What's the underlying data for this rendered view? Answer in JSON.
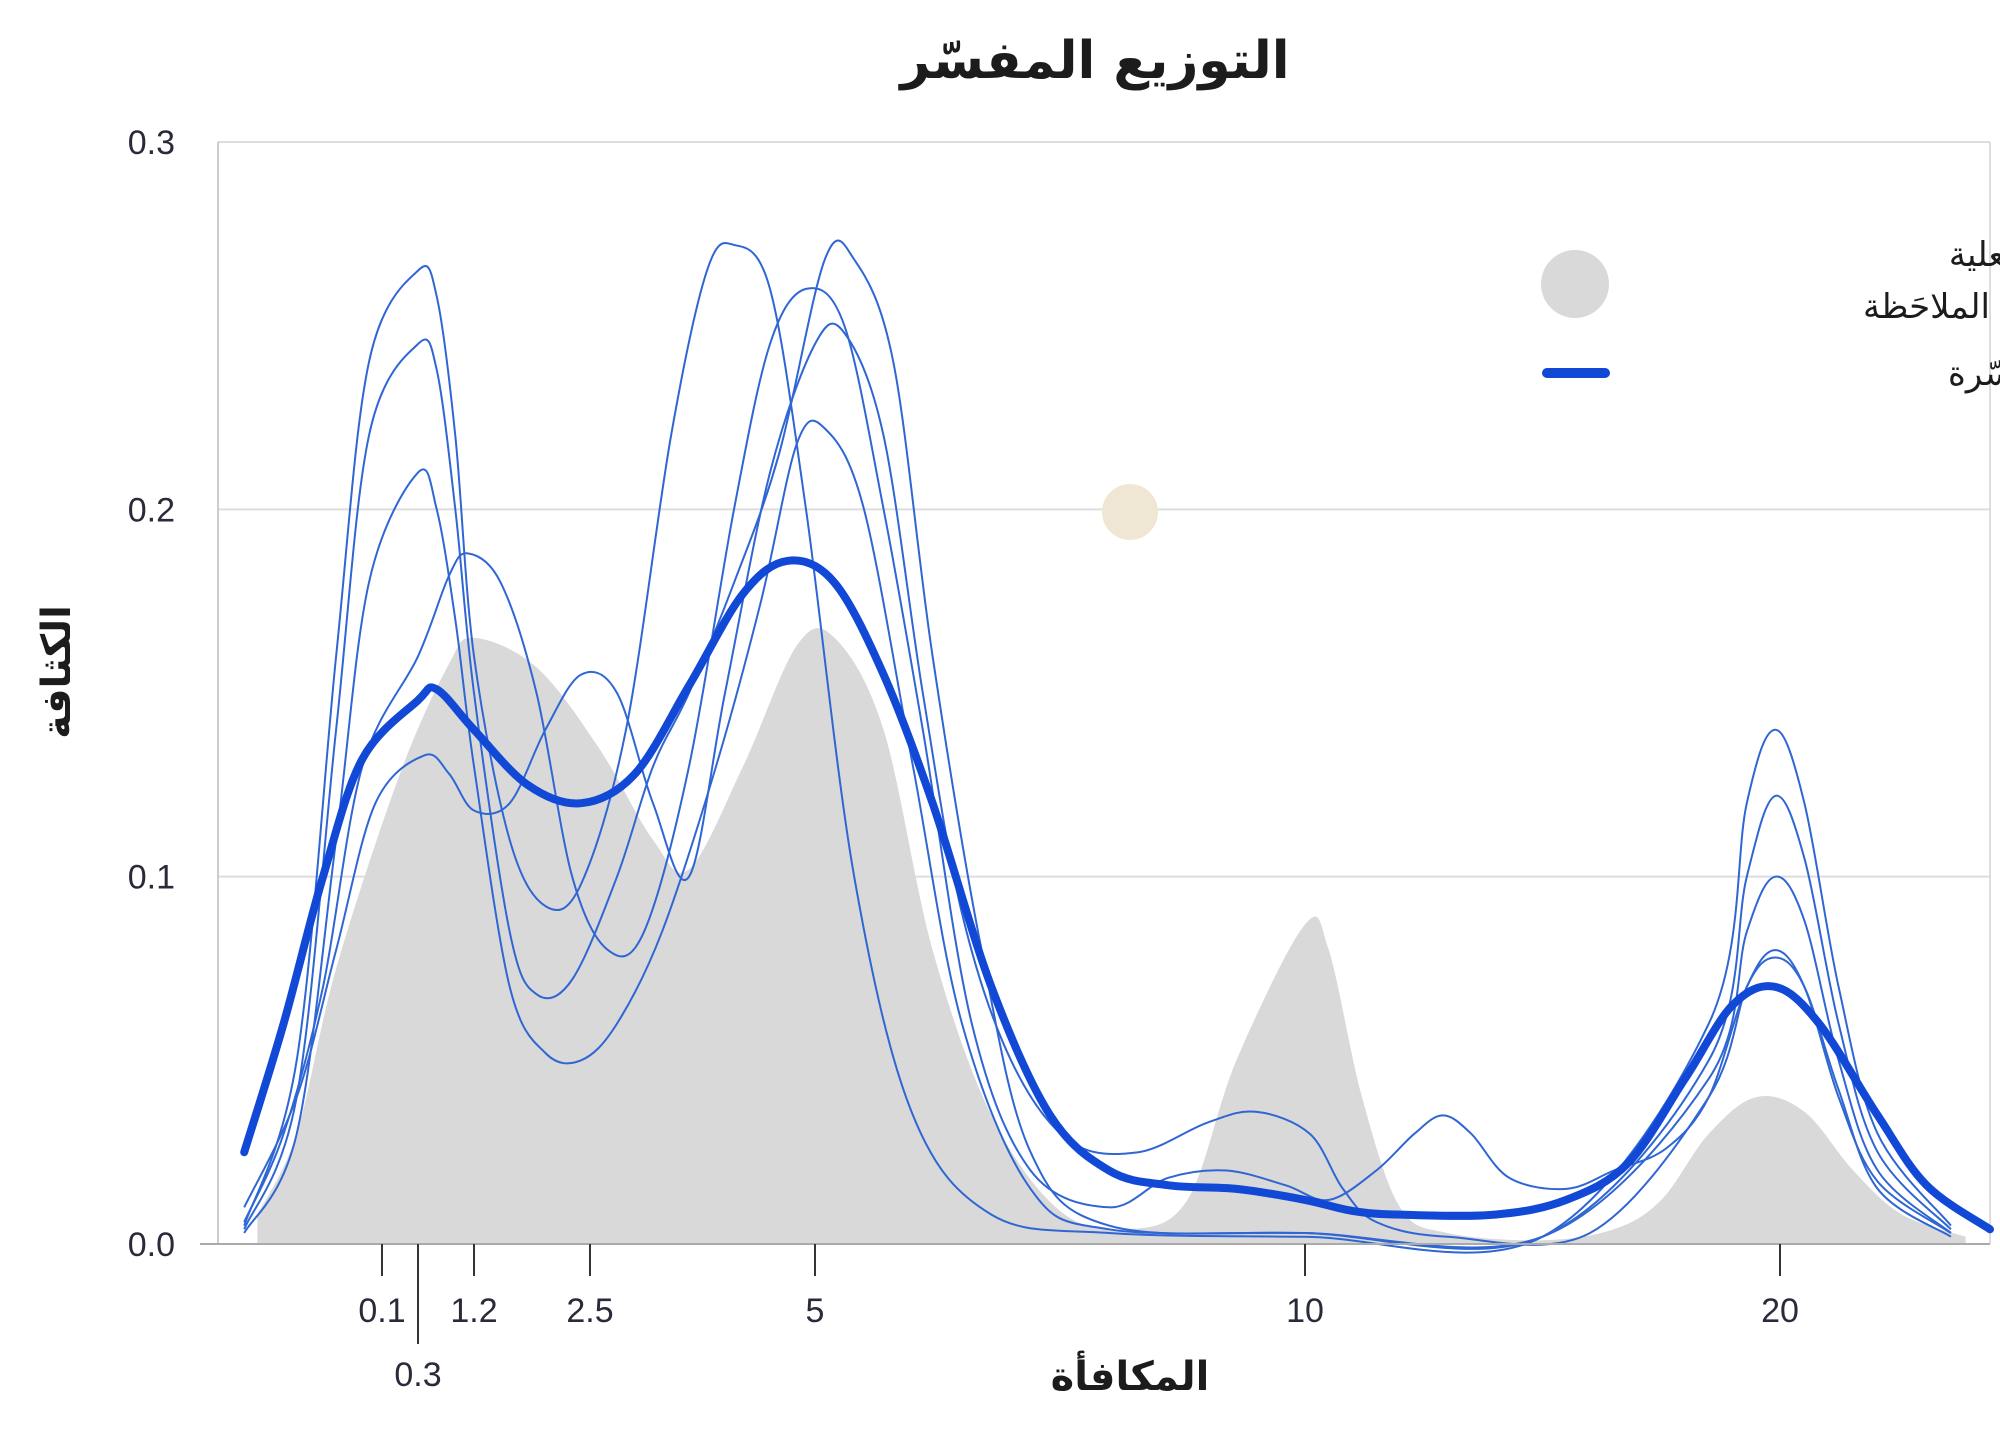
{
  "chart_data": {
    "type": "area",
    "title": "التوزيع المفسّر",
    "xlabel": "المكافأة",
    "ylabel": "الكثافة",
    "ylim": [
      0,
      0.3
    ],
    "y_ticks": [
      "0.0",
      "0.1",
      "0.2",
      "0.3"
    ],
    "x_ticks": [
      {
        "value": 0.1,
        "label": "0.1",
        "row": 1
      },
      {
        "value": 0.3,
        "label": "0.3",
        "row": 2
      },
      {
        "value": 1.2,
        "label": "1.2",
        "row": 1
      },
      {
        "value": 2.5,
        "label": "2.5",
        "row": 1
      },
      {
        "value": 5,
        "label": "5",
        "row": 1
      },
      {
        "value": 10,
        "label": "10",
        "row": 1
      },
      {
        "value": 20,
        "label": "20",
        "row": 1
      }
    ],
    "grid": true,
    "legend_position": "top-right",
    "colors": {
      "observed": "#d9d9d9",
      "fitted": "#1148d6",
      "samples": "#2f66d4",
      "grid": "#dddddd",
      "dot": "#efe6d4"
    },
    "series": [
      {
        "name": "المعلومات الفعلية الملاحَظة",
        "kind": "area",
        "points": [
          [
            -1.8,
            0.008
          ],
          [
            -1.2,
            0.03
          ],
          [
            -0.6,
            0.075
          ],
          [
            0.2,
            0.128
          ],
          [
            0.8,
            0.158
          ],
          [
            1.2,
            0.165
          ],
          [
            1.9,
            0.157
          ],
          [
            2.6,
            0.135
          ],
          [
            3.2,
            0.11
          ],
          [
            3.6,
            0.102
          ],
          [
            4.2,
            0.13
          ],
          [
            4.8,
            0.163
          ],
          [
            5.2,
            0.165
          ],
          [
            5.7,
            0.14
          ],
          [
            6.2,
            0.08
          ],
          [
            6.8,
            0.035
          ],
          [
            7.5,
            0.009
          ],
          [
            8.2,
            0.004
          ],
          [
            8.8,
            0.012
          ],
          [
            9.3,
            0.05
          ],
          [
            10,
            0.087
          ],
          [
            10.5,
            0.08
          ],
          [
            11.2,
            0.04
          ],
          [
            12,
            0.01
          ],
          [
            13,
            0.003
          ],
          [
            15,
            0.001
          ],
          [
            16.5,
            0.004
          ],
          [
            17.5,
            0.012
          ],
          [
            18.5,
            0.03
          ],
          [
            19.5,
            0.04
          ],
          [
            20.5,
            0.036
          ],
          [
            21.5,
            0.02
          ],
          [
            22.5,
            0.008
          ],
          [
            23.8,
            0.002
          ]
        ]
      },
      {
        "name": "المعلومات المفسّرة",
        "kind": "line",
        "points": [
          [
            -2,
            0.025
          ],
          [
            -1.4,
            0.06
          ],
          [
            -0.8,
            0.1
          ],
          [
            -0.2,
            0.132
          ],
          [
            0.3,
            0.148
          ],
          [
            0.6,
            0.151
          ],
          [
            1.2,
            0.14
          ],
          [
            1.8,
            0.125
          ],
          [
            2.4,
            0.12
          ],
          [
            3.0,
            0.128
          ],
          [
            3.6,
            0.152
          ],
          [
            4.2,
            0.177
          ],
          [
            4.7,
            0.186
          ],
          [
            5.2,
            0.18
          ],
          [
            5.7,
            0.155
          ],
          [
            6.2,
            0.12
          ],
          [
            6.8,
            0.07
          ],
          [
            7.4,
            0.035
          ],
          [
            8.0,
            0.02
          ],
          [
            8.6,
            0.016
          ],
          [
            9.3,
            0.015
          ],
          [
            10,
            0.012
          ],
          [
            11,
            0.009
          ],
          [
            12,
            0.008
          ],
          [
            14,
            0.008
          ],
          [
            15.5,
            0.012
          ],
          [
            16.8,
            0.022
          ],
          [
            18,
            0.045
          ],
          [
            19,
            0.065
          ],
          [
            19.9,
            0.07
          ],
          [
            20.8,
            0.06
          ],
          [
            22,
            0.035
          ],
          [
            23,
            0.016
          ],
          [
            24.3,
            0.004
          ]
        ]
      },
      {
        "kind": "sample",
        "points": [
          [
            -2,
            0.005
          ],
          [
            -1.2,
            0.05
          ],
          [
            -0.6,
            0.16
          ],
          [
            -0.1,
            0.24
          ],
          [
            0.3,
            0.265
          ],
          [
            0.6,
            0.258
          ],
          [
            0.9,
            0.22
          ],
          [
            1.2,
            0.16
          ],
          [
            1.6,
            0.11
          ],
          [
            2.0,
            0.092
          ],
          [
            2.4,
            0.098
          ],
          [
            2.9,
            0.14
          ],
          [
            3.4,
            0.22
          ],
          [
            3.8,
            0.265
          ],
          [
            4.1,
            0.272
          ],
          [
            4.5,
            0.26
          ],
          [
            4.9,
            0.2
          ],
          [
            5.4,
            0.1
          ],
          [
            6.0,
            0.035
          ],
          [
            6.8,
            0.008
          ],
          [
            8,
            0.003
          ],
          [
            10,
            0.002
          ],
          [
            15,
            0.002
          ],
          [
            18.5,
            0.06
          ],
          [
            19.3,
            0.12
          ],
          [
            19.9,
            0.14
          ],
          [
            20.5,
            0.12
          ],
          [
            21.2,
            0.07
          ],
          [
            22,
            0.03
          ],
          [
            23.5,
            0.005
          ]
        ]
      },
      {
        "kind": "sample",
        "points": [
          [
            -2,
            0.004
          ],
          [
            -1.2,
            0.04
          ],
          [
            -0.6,
            0.14
          ],
          [
            -0.1,
            0.22
          ],
          [
            0.3,
            0.245
          ],
          [
            0.6,
            0.238
          ],
          [
            0.9,
            0.2
          ],
          [
            1.2,
            0.15
          ],
          [
            1.6,
            0.085
          ],
          [
            1.9,
            0.068
          ],
          [
            2.3,
            0.072
          ],
          [
            2.8,
            0.1
          ],
          [
            3.2,
            0.13
          ],
          [
            3.6,
            0.15
          ],
          [
            4.1,
            0.18
          ],
          [
            4.6,
            0.215
          ],
          [
            5.1,
            0.268
          ],
          [
            5.4,
            0.268
          ],
          [
            5.8,
            0.24
          ],
          [
            6.2,
            0.16
          ],
          [
            6.7,
            0.08
          ],
          [
            7.2,
            0.025
          ],
          [
            8,
            0.005
          ],
          [
            10,
            0.003
          ],
          [
            15,
            0.002
          ],
          [
            18.5,
            0.05
          ],
          [
            19.3,
            0.1
          ],
          [
            19.9,
            0.122
          ],
          [
            20.5,
            0.105
          ],
          [
            21.2,
            0.06
          ],
          [
            22,
            0.025
          ],
          [
            23.5,
            0.004
          ]
        ]
      },
      {
        "kind": "sample",
        "points": [
          [
            -2,
            0.003
          ],
          [
            -1.2,
            0.03
          ],
          [
            -0.6,
            0.11
          ],
          [
            -0.1,
            0.18
          ],
          [
            0.3,
            0.21
          ],
          [
            0.6,
            0.2
          ],
          [
            0.9,
            0.17
          ],
          [
            1.2,
            0.13
          ],
          [
            1.6,
            0.07
          ],
          [
            2.0,
            0.052
          ],
          [
            2.4,
            0.05
          ],
          [
            2.8,
            0.06
          ],
          [
            3.3,
            0.085
          ],
          [
            3.9,
            0.13
          ],
          [
            4.4,
            0.175
          ],
          [
            4.8,
            0.218
          ],
          [
            5.1,
            0.222
          ],
          [
            5.5,
            0.2
          ],
          [
            6.0,
            0.13
          ],
          [
            6.5,
            0.06
          ],
          [
            7.2,
            0.015
          ],
          [
            8,
            0.004
          ],
          [
            10,
            0.003
          ],
          [
            15,
            0.002
          ],
          [
            18.5,
            0.045
          ],
          [
            19.3,
            0.085
          ],
          [
            19.9,
            0.1
          ],
          [
            20.5,
            0.088
          ],
          [
            21.2,
            0.05
          ],
          [
            22,
            0.02
          ],
          [
            23.5,
            0.003
          ]
        ]
      },
      {
        "kind": "sample",
        "points": [
          [
            -2,
            0.01
          ],
          [
            -1.2,
            0.04
          ],
          [
            -0.6,
            0.08
          ],
          [
            0,
            0.12
          ],
          [
            0.4,
            0.133
          ],
          [
            0.8,
            0.128
          ],
          [
            1.2,
            0.118
          ],
          [
            1.6,
            0.12
          ],
          [
            2.0,
            0.14
          ],
          [
            2.4,
            0.155
          ],
          [
            2.8,
            0.15
          ],
          [
            3.2,
            0.12
          ],
          [
            3.6,
            0.1
          ],
          [
            4.0,
            0.15
          ],
          [
            4.5,
            0.21
          ],
          [
            5.0,
            0.245
          ],
          [
            5.3,
            0.248
          ],
          [
            5.7,
            0.22
          ],
          [
            6.1,
            0.15
          ],
          [
            6.5,
            0.09
          ],
          [
            7.0,
            0.05
          ],
          [
            7.6,
            0.028
          ],
          [
            8.3,
            0.025
          ],
          [
            9.0,
            0.033
          ],
          [
            9.5,
            0.036
          ],
          [
            10.1,
            0.03
          ],
          [
            10.8,
            0.015
          ],
          [
            11.5,
            0.006
          ],
          [
            13,
            0.002
          ],
          [
            16,
            0.003
          ],
          [
            18.5,
            0.04
          ],
          [
            19.3,
            0.07
          ],
          [
            19.9,
            0.08
          ],
          [
            20.5,
            0.07
          ],
          [
            21.2,
            0.04
          ],
          [
            22,
            0.017
          ],
          [
            23.5,
            0.003
          ]
        ]
      },
      {
        "kind": "sample",
        "points": [
          [
            -2,
            0.006
          ],
          [
            -1.4,
            0.03
          ],
          [
            -0.8,
            0.07
          ],
          [
            -0.2,
            0.13
          ],
          [
            0.3,
            0.16
          ],
          [
            0.8,
            0.182
          ],
          [
            1.1,
            0.188
          ],
          [
            1.5,
            0.18
          ],
          [
            1.9,
            0.15
          ],
          [
            2.3,
            0.1
          ],
          [
            2.7,
            0.08
          ],
          [
            3.1,
            0.085
          ],
          [
            3.6,
            0.13
          ],
          [
            4.1,
            0.2
          ],
          [
            4.5,
            0.245
          ],
          [
            4.9,
            0.26
          ],
          [
            5.3,
            0.25
          ],
          [
            5.7,
            0.2
          ],
          [
            6.1,
            0.14
          ],
          [
            6.6,
            0.06
          ],
          [
            7.2,
            0.02
          ],
          [
            8.0,
            0.01
          ],
          [
            8.6,
            0.018
          ],
          [
            9.2,
            0.02
          ],
          [
            9.8,
            0.016
          ],
          [
            10.5,
            0.012
          ],
          [
            11.5,
            0.02
          ],
          [
            12.3,
            0.03
          ],
          [
            12.9,
            0.035
          ],
          [
            13.5,
            0.03
          ],
          [
            14.3,
            0.018
          ],
          [
            15.5,
            0.015
          ],
          [
            16.5,
            0.02
          ],
          [
            17.6,
            0.026
          ],
          [
            18.5,
            0.04
          ],
          [
            19.3,
            0.07
          ],
          [
            19.9,
            0.078
          ],
          [
            20.5,
            0.07
          ],
          [
            21.2,
            0.042
          ],
          [
            22,
            0.015
          ],
          [
            23.5,
            0.002
          ]
        ]
      }
    ]
  }
}
